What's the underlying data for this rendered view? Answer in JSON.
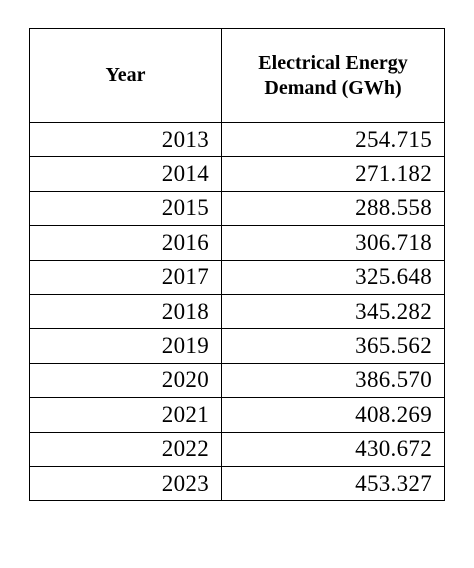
{
  "table": {
    "headers": {
      "year": "Year",
      "demand_line1": "Electrical Energy",
      "demand_line2": "Demand (GWh)"
    },
    "rows": [
      {
        "year": "2013",
        "demand": "254.715"
      },
      {
        "year": "2014",
        "demand": "271.182"
      },
      {
        "year": "2015",
        "demand": "288.558"
      },
      {
        "year": "2016",
        "demand": "306.718"
      },
      {
        "year": "2017",
        "demand": "325.648"
      },
      {
        "year": "2018",
        "demand": "345.282"
      },
      {
        "year": "2019",
        "demand": "365.562"
      },
      {
        "year": "2020",
        "demand": "386.570"
      },
      {
        "year": "2021",
        "demand": "408.269"
      },
      {
        "year": "2022",
        "demand": "430.672"
      },
      {
        "year": "2023",
        "demand": "453.327"
      }
    ]
  }
}
